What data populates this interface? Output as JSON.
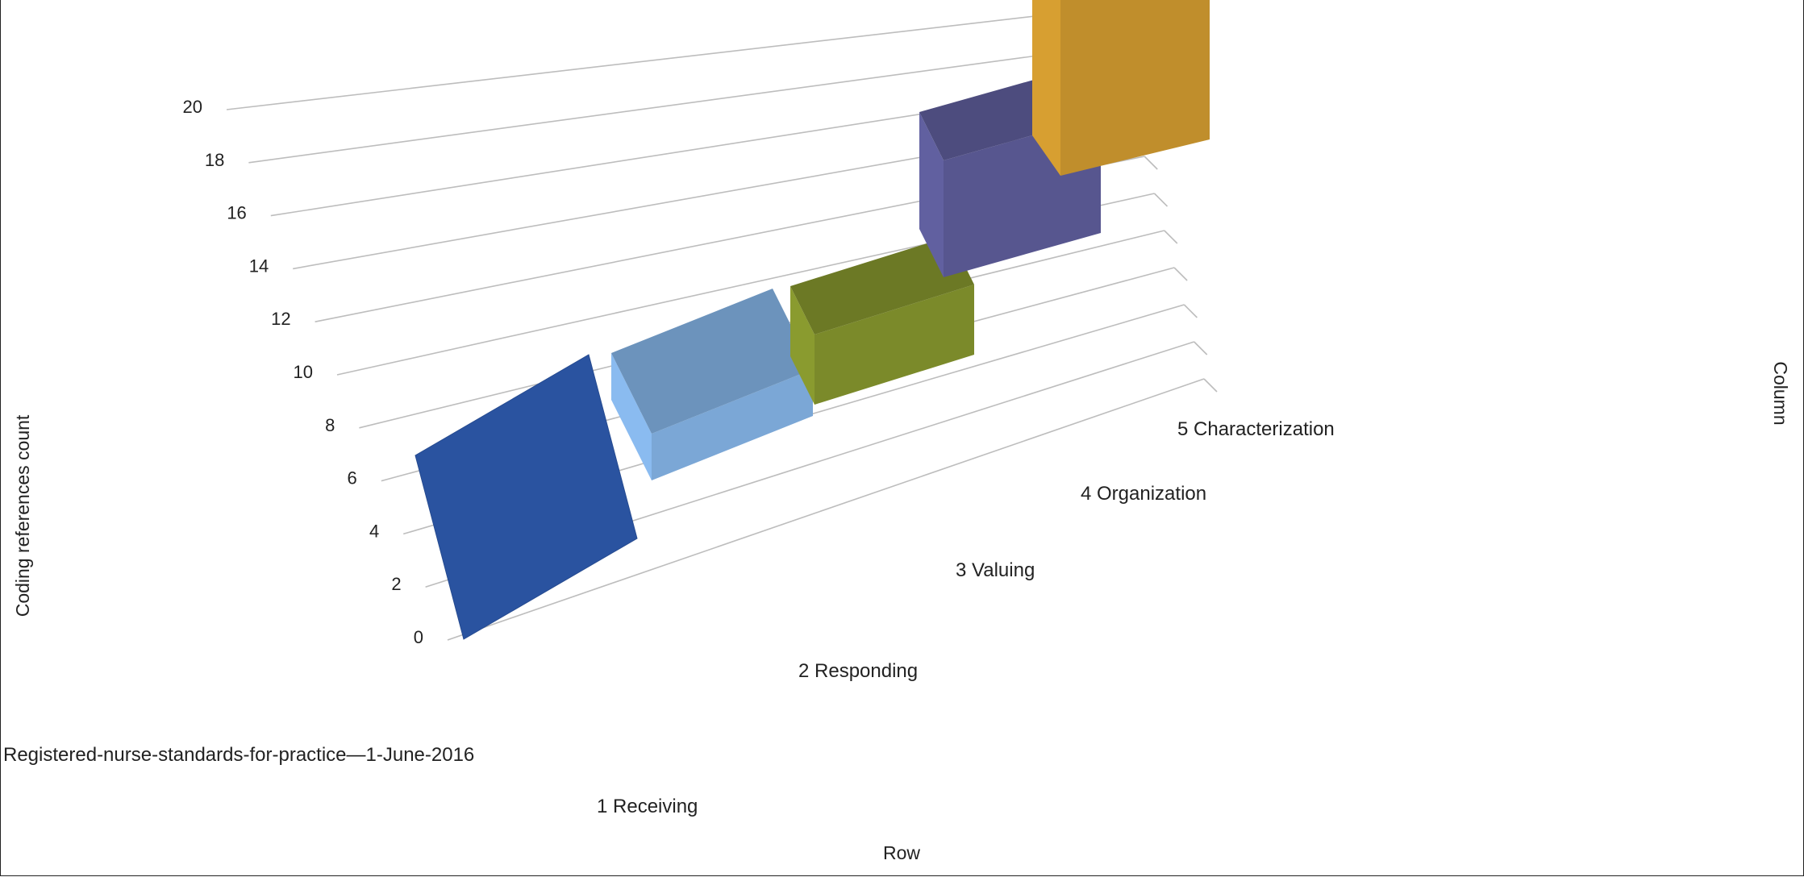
{
  "chart_data": {
    "type": "bar",
    "chart_style": "3d-column",
    "series": [
      {
        "name": "Registered-nurse-standards-for-practice—1-June-2016",
        "values": [
          0,
          4,
          6,
          10,
          16
        ]
      }
    ],
    "categories": [
      "1 Receiving",
      "2 Responding",
      "3 Valuing",
      "4 Organization",
      "5 Characterization"
    ],
    "yticks": [
      "0",
      "2",
      "4",
      "6",
      "8",
      "10",
      "12",
      "14",
      "16",
      "18",
      "20"
    ],
    "ylim": [
      0,
      20
    ],
    "ylabel": "Coding references count",
    "xlabel": "Row",
    "zlabel": "Column",
    "grid": true,
    "colors": [
      "#2a53a0",
      "#7ba7d6",
      "#7b8a2a",
      "#57568f",
      "#c08e2c"
    ]
  }
}
